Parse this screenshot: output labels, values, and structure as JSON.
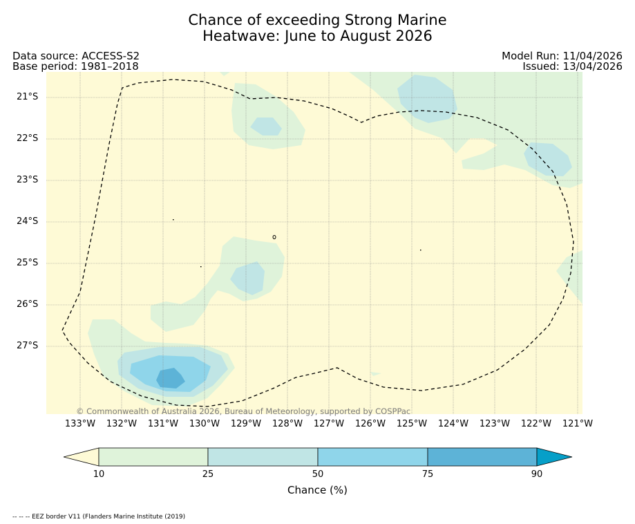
{
  "title_line1": "Chance of exceeding Strong Marine",
  "title_line2": "Heatwave: June to August 2026",
  "data_source": "Data source: ACCESS-S2",
  "base_period": "Base period: 1981–2018",
  "model_run": "Model Run: 11/04/2026",
  "issued": "Issued: 13/04/2026",
  "credit": "© Commonwealth of Australia 2026, Bureau of Meteorology, supported by COSPPac",
  "lat_labels": [
    "21°S",
    "22°S",
    "23°S",
    "24°S",
    "25°S",
    "26°S",
    "27°S"
  ],
  "lon_labels": [
    "133°W",
    "132°W",
    "131°W",
    "130°W",
    "129°W",
    "128°W",
    "127°W",
    "126°W",
    "125°W",
    "124°W",
    "123°W",
    "122°W",
    "121°W"
  ],
  "colorbar": {
    "ticks": [
      "10",
      "25",
      "50",
      "75",
      "90"
    ],
    "label": "Chance (%)",
    "colors": [
      "#fefad6",
      "#dff3da",
      "#c0e5e5",
      "#8fd5ea",
      "#5db3d7",
      "#069fc8"
    ]
  },
  "footnote": "-- -- -- EEZ border V11 (Flanders Marine Institute (2019)"
}
